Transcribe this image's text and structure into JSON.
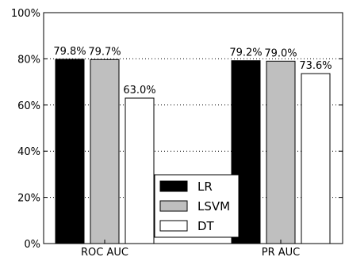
{
  "chart_data": {
    "type": "bar",
    "title": "",
    "xlabel": "",
    "ylabel": "",
    "categories": [
      "ROC AUC",
      "PR AUC"
    ],
    "series": [
      {
        "name": "LR",
        "values": [
          79.8,
          79.2
        ],
        "color": "#000000"
      },
      {
        "name": "LSVM",
        "values": [
          79.7,
          79.0
        ],
        "color": "#bfbfbf"
      },
      {
        "name": "DT",
        "values": [
          63.0,
          73.6
        ],
        "color": "#ffffff"
      }
    ],
    "data_labels": [
      [
        "79.8%",
        "79.2%"
      ],
      [
        "79.7%",
        "79.0%"
      ],
      [
        "63.0%",
        "73.6%"
      ]
    ],
    "ylim": [
      0,
      100
    ],
    "yticks": [
      0,
      20,
      40,
      60,
      80,
      100
    ],
    "ytick_labels": [
      "0%",
      "20%",
      "40%",
      "60%",
      "80%",
      "100%"
    ],
    "grid": {
      "y": true,
      "style": "dotted"
    },
    "legend": {
      "placement": "lower-center"
    }
  }
}
